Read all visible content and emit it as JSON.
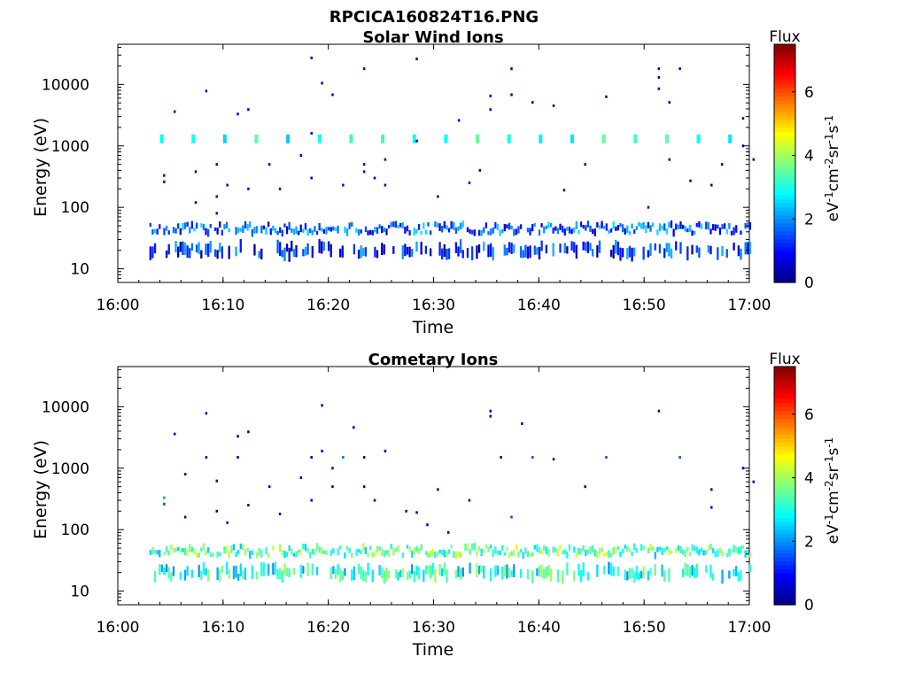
{
  "figure": {
    "title": "RPCICA160824T16.PNG"
  },
  "chart_data": [
    {
      "type": "heatmap",
      "title": "Solar Wind Ions",
      "xlabel": "Time",
      "ylabel": "Energy (eV)",
      "x_ticks": [
        "16:00",
        "16:10",
        "16:20",
        "16:30",
        "16:40",
        "16:50",
        "17:00"
      ],
      "xlim": [
        "16:00",
        "17:00"
      ],
      "y_scale": "log",
      "y_ticks": [
        "10",
        "100",
        "1000",
        "10000"
      ],
      "ylim": [
        6,
        45000
      ],
      "colorbar": {
        "label": "Flux",
        "unit": "eV-1cm-2sr-1s-1",
        "range": [
          0,
          7.5
        ],
        "ticks": [
          "0",
          "2",
          "4",
          "6"
        ]
      },
      "bands": [
        {
          "name": "primary",
          "center_eV": 45,
          "time_range": [
            "16:03",
            "17:00"
          ],
          "flux": 1.6
        },
        {
          "name": "secondary",
          "center_eV": 20,
          "time_range": [
            "16:03",
            "17:00"
          ],
          "flux": 1.2
        },
        {
          "name": "pulses",
          "center_eV": 1300,
          "time_range": [
            "16:04",
            "17:00"
          ],
          "flux": 3.0,
          "period_min": 3
        }
      ],
      "scatter": [
        {
          "t": "16:04",
          "e": 330,
          "v": 0.5
        },
        {
          "t": "16:04",
          "e": 260,
          "v": 0.5
        },
        {
          "t": "16:05",
          "e": 3600,
          "v": 0.8
        },
        {
          "t": "16:07",
          "e": 120,
          "v": 0.6
        },
        {
          "t": "16:07",
          "e": 380,
          "v": 0.5
        },
        {
          "t": "16:08",
          "e": 7800,
          "v": 0.7
        },
        {
          "t": "16:09",
          "e": 150,
          "v": 0.6
        },
        {
          "t": "16:09",
          "e": 500,
          "v": 0.5
        },
        {
          "t": "16:09",
          "e": 80,
          "v": 0.5
        },
        {
          "t": "16:10",
          "e": 230,
          "v": 0.5
        },
        {
          "t": "16:11",
          "e": 3300,
          "v": 0.6
        },
        {
          "t": "16:12",
          "e": 3900,
          "v": 0.5
        },
        {
          "t": "16:12",
          "e": 200,
          "v": 0.7
        },
        {
          "t": "16:14",
          "e": 500,
          "v": 0.5
        },
        {
          "t": "16:15",
          "e": 200,
          "v": 0.6
        },
        {
          "t": "16:17",
          "e": 700,
          "v": 0.6
        },
        {
          "t": "16:18",
          "e": 27000,
          "v": 0.5
        },
        {
          "t": "16:18",
          "e": 1600,
          "v": 0.5
        },
        {
          "t": "16:18",
          "e": 300,
          "v": 0.5
        },
        {
          "t": "16:19",
          "e": 10500,
          "v": 0.6
        },
        {
          "t": "16:20",
          "e": 6800,
          "v": 0.5
        },
        {
          "t": "16:21",
          "e": 230,
          "v": 0.5
        },
        {
          "t": "16:23",
          "e": 18000,
          "v": 0.6
        },
        {
          "t": "16:23",
          "e": 500,
          "v": 0.5
        },
        {
          "t": "16:23",
          "e": 380,
          "v": 0.5
        },
        {
          "t": "16:24",
          "e": 300,
          "v": 0.5
        },
        {
          "t": "16:25",
          "e": 600,
          "v": 0.5
        },
        {
          "t": "16:25",
          "e": 230,
          "v": 0.5
        },
        {
          "t": "16:28",
          "e": 26000,
          "v": 0.6
        },
        {
          "t": "16:28",
          "e": 1200,
          "v": 0.5
        },
        {
          "t": "16:30",
          "e": 150,
          "v": 0.5
        },
        {
          "t": "16:32",
          "e": 2600,
          "v": 0.5
        },
        {
          "t": "16:33",
          "e": 250,
          "v": 0.6
        },
        {
          "t": "16:34",
          "e": 400,
          "v": 0.5
        },
        {
          "t": "16:35",
          "e": 6500,
          "v": 0.6
        },
        {
          "t": "16:35",
          "e": 3900,
          "v": 0.5
        },
        {
          "t": "16:37",
          "e": 18000,
          "v": 0.6
        },
        {
          "t": "16:37",
          "e": 6800,
          "v": 0.5
        },
        {
          "t": "16:39",
          "e": 5100,
          "v": 0.6
        },
        {
          "t": "16:41",
          "e": 4500,
          "v": 0.5
        },
        {
          "t": "16:42",
          "e": 190,
          "v": 0.5
        },
        {
          "t": "16:44",
          "e": 500,
          "v": 0.5
        },
        {
          "t": "16:46",
          "e": 6300,
          "v": 0.6
        },
        {
          "t": "16:50",
          "e": 100,
          "v": 0.5
        },
        {
          "t": "16:51",
          "e": 18000,
          "v": 0.6
        },
        {
          "t": "16:51",
          "e": 13000,
          "v": 0.6
        },
        {
          "t": "16:51",
          "e": 8500,
          "v": 0.5
        },
        {
          "t": "16:52",
          "e": 5100,
          "v": 0.5
        },
        {
          "t": "16:52",
          "e": 600,
          "v": 0.5
        },
        {
          "t": "16:53",
          "e": 18000,
          "v": 0.6
        },
        {
          "t": "16:54",
          "e": 270,
          "v": 0.5
        },
        {
          "t": "16:56",
          "e": 230,
          "v": 0.5
        },
        {
          "t": "16:57",
          "e": 500,
          "v": 0.5
        },
        {
          "t": "16:59",
          "e": 2800,
          "v": 0.6
        },
        {
          "t": "16:59",
          "e": 1000,
          "v": 0.5
        },
        {
          "t": "17:00",
          "e": 600,
          "v": 0.5
        }
      ]
    },
    {
      "type": "heatmap",
      "title": "Cometary Ions",
      "xlabel": "Time",
      "ylabel": "Energy (eV)",
      "x_ticks": [
        "16:00",
        "16:10",
        "16:20",
        "16:30",
        "16:40",
        "16:50",
        "17:00"
      ],
      "xlim": [
        "16:00",
        "17:00"
      ],
      "y_scale": "log",
      "y_ticks": [
        "10",
        "100",
        "1000",
        "10000"
      ],
      "ylim": [
        6,
        45000
      ],
      "colorbar": {
        "label": "Flux",
        "unit": "eV-1cm-2sr-1s-1",
        "range": [
          0,
          7.5
        ],
        "ticks": [
          "0",
          "2",
          "4",
          "6"
        ]
      },
      "bands": [
        {
          "name": "primary",
          "center_eV": 45,
          "time_range": [
            "16:03",
            "17:00"
          ],
          "flux": 3.4
        },
        {
          "name": "secondary",
          "center_eV": 20,
          "time_range": [
            "16:03",
            "17:00"
          ],
          "flux": 3.0
        }
      ],
      "scatter": [
        {
          "t": "16:04",
          "e": 330,
          "v": 2.0
        },
        {
          "t": "16:04",
          "e": 260,
          "v": 1.5
        },
        {
          "t": "16:05",
          "e": 3600,
          "v": 0.6
        },
        {
          "t": "16:06",
          "e": 800,
          "v": 0.5
        },
        {
          "t": "16:06",
          "e": 160,
          "v": 0.5
        },
        {
          "t": "16:08",
          "e": 1500,
          "v": 0.6
        },
        {
          "t": "16:08",
          "e": 7800,
          "v": 0.6
        },
        {
          "t": "16:09",
          "e": 620,
          "v": 0.5
        },
        {
          "t": "16:09",
          "e": 200,
          "v": 0.5
        },
        {
          "t": "16:10",
          "e": 130,
          "v": 0.5
        },
        {
          "t": "16:11",
          "e": 3300,
          "v": 0.5
        },
        {
          "t": "16:11",
          "e": 1500,
          "v": 0.6
        },
        {
          "t": "16:12",
          "e": 3900,
          "v": 0.5
        },
        {
          "t": "16:12",
          "e": 250,
          "v": 0.5
        },
        {
          "t": "16:14",
          "e": 500,
          "v": 0.5
        },
        {
          "t": "16:15",
          "e": 180,
          "v": 0.6
        },
        {
          "t": "16:17",
          "e": 700,
          "v": 0.5
        },
        {
          "t": "16:18",
          "e": 1500,
          "v": 0.5
        },
        {
          "t": "16:18",
          "e": 300,
          "v": 0.5
        },
        {
          "t": "16:19",
          "e": 10500,
          "v": 0.5
        },
        {
          "t": "16:19",
          "e": 1900,
          "v": 0.5
        },
        {
          "t": "16:20",
          "e": 1000,
          "v": 0.5
        },
        {
          "t": "16:20",
          "e": 500,
          "v": 0.5
        },
        {
          "t": "16:21",
          "e": 1500,
          "v": 1.8
        },
        {
          "t": "16:22",
          "e": 4600,
          "v": 0.5
        },
        {
          "t": "16:23",
          "e": 1500,
          "v": 0.5
        },
        {
          "t": "16:23",
          "e": 500,
          "v": 0.5
        },
        {
          "t": "16:24",
          "e": 300,
          "v": 0.5
        },
        {
          "t": "16:25",
          "e": 1900,
          "v": 0.5
        },
        {
          "t": "16:27",
          "e": 200,
          "v": 0.6
        },
        {
          "t": "16:28",
          "e": 190,
          "v": 0.5
        },
        {
          "t": "16:29",
          "e": 120,
          "v": 0.5
        },
        {
          "t": "16:30",
          "e": 450,
          "v": 0.5
        },
        {
          "t": "16:31",
          "e": 90,
          "v": 0.5
        },
        {
          "t": "16:33",
          "e": 300,
          "v": 0.6
        },
        {
          "t": "16:35",
          "e": 8500,
          "v": 0.6
        },
        {
          "t": "16:35",
          "e": 7000,
          "v": 0.5
        },
        {
          "t": "16:36",
          "e": 1500,
          "v": 0.5
        },
        {
          "t": "16:37",
          "e": 160,
          "v": 1.5
        },
        {
          "t": "16:38",
          "e": 5300,
          "v": 0.6
        },
        {
          "t": "16:39",
          "e": 1500,
          "v": 1.5
        },
        {
          "t": "16:41",
          "e": 1400,
          "v": 0.5
        },
        {
          "t": "16:44",
          "e": 500,
          "v": 0.5
        },
        {
          "t": "16:46",
          "e": 1500,
          "v": 1.5
        },
        {
          "t": "16:51",
          "e": 8500,
          "v": 0.6
        },
        {
          "t": "16:53",
          "e": 1500,
          "v": 1.5
        },
        {
          "t": "16:56",
          "e": 450,
          "v": 0.5
        },
        {
          "t": "16:56",
          "e": 230,
          "v": 0.5
        },
        {
          "t": "16:59",
          "e": 1000,
          "v": 0.6
        },
        {
          "t": "17:00",
          "e": 600,
          "v": 0.5
        }
      ]
    }
  ]
}
